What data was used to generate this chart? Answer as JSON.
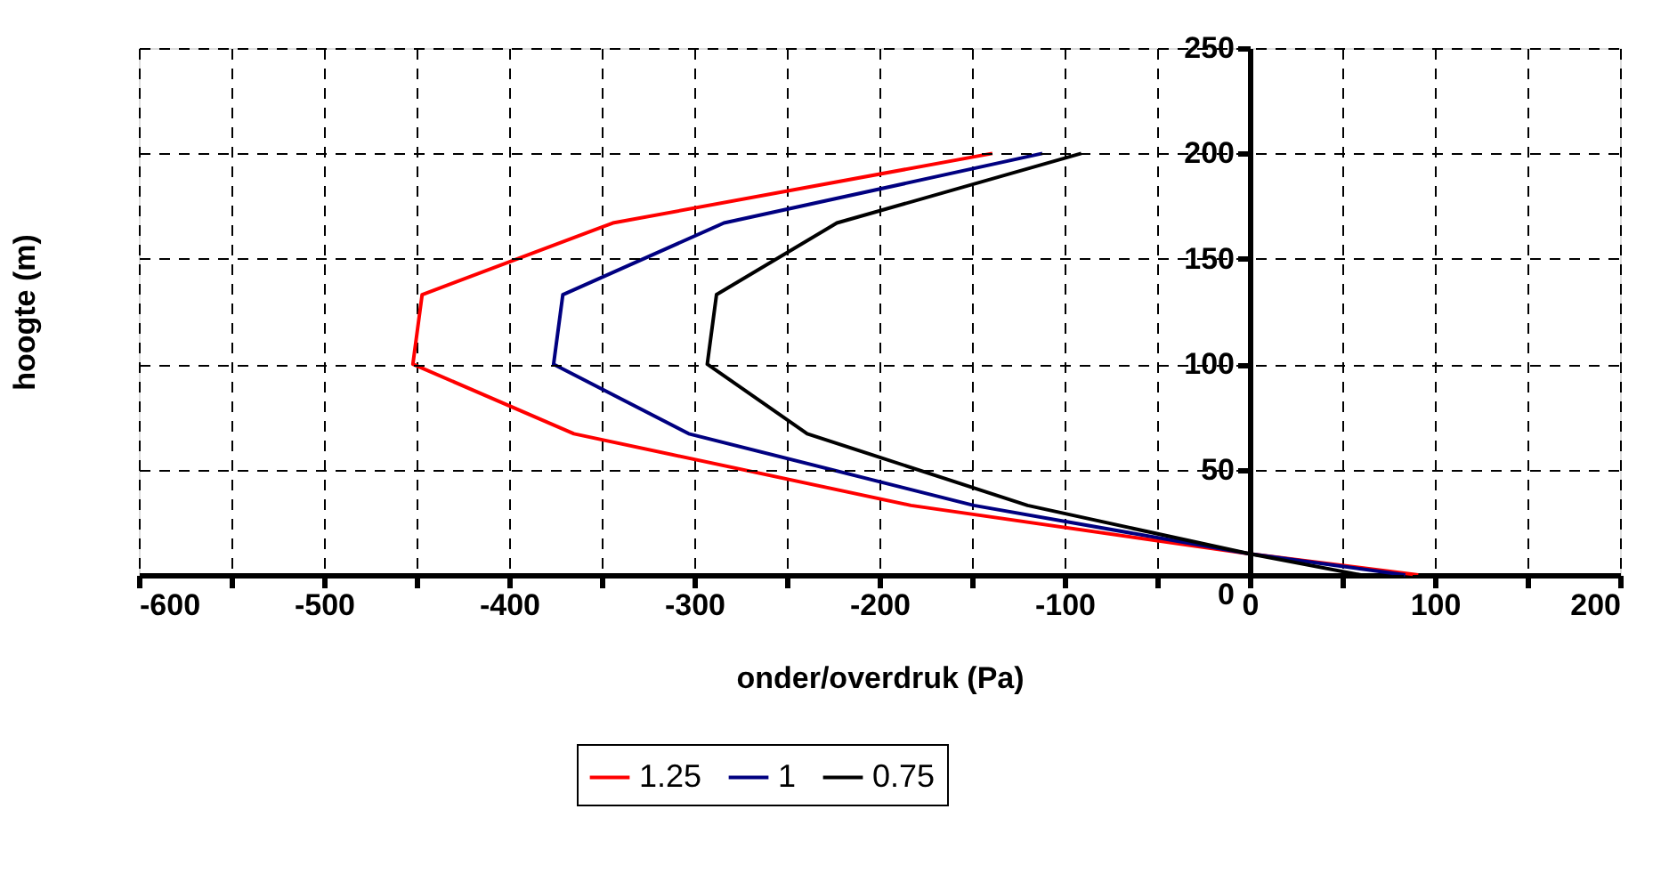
{
  "chart_data": {
    "type": "line",
    "xlabel": "onder/overdruk (Pa)",
    "ylabel": "hoogte (m)",
    "xlim": [
      -600,
      200
    ],
    "ylim": [
      0,
      250
    ],
    "xticks": [
      -600,
      {
        "value": -550,
        "label": null
      },
      -500,
      {
        "value": -450,
        "label": null
      },
      -400,
      {
        "value": -350,
        "label": null
      },
      -300,
      {
        "value": -250,
        "label": null
      },
      -200,
      {
        "value": -150,
        "label": null
      },
      -100,
      {
        "value": -50,
        "label": null
      },
      0,
      {
        "value": 50,
        "label": null
      },
      100,
      {
        "value": 150,
        "label": null
      },
      200
    ],
    "yticks": [
      0,
      50,
      100,
      150,
      200,
      250
    ],
    "grid": true,
    "legend": "bottom",
    "marker": "none",
    "line_style": "solid",
    "series": [
      {
        "name": "1.25",
        "color": "#ff0000",
        "x": [
          91,
          0,
          -183,
          -365,
          -452,
          -447,
          -344,
          -139
        ],
        "values": [
          0,
          10,
          33,
          67,
          100,
          133,
          167,
          200
        ]
      },
      {
        "name": "1",
        "color": "#000080",
        "x": [
          84,
          0,
          -149,
          -303,
          -376,
          -371,
          -284,
          -112
        ],
        "values": [
          0,
          10,
          33,
          67,
          100,
          133,
          167,
          200
        ]
      },
      {
        "name": "0.75",
        "color": "#000000",
        "x": [
          60,
          0,
          -120,
          -239,
          -293,
          -288,
          -223,
          -91
        ],
        "values": [
          0,
          10,
          33,
          67,
          100,
          133,
          167,
          200
        ]
      }
    ]
  }
}
